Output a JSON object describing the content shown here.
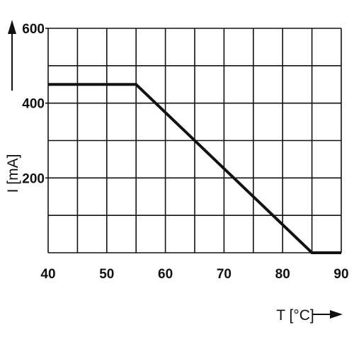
{
  "chart_data": {
    "type": "line",
    "xlabel": "T [°C]",
    "ylabel": "I [mA]",
    "xlim": [
      40,
      90
    ],
    "ylim": [
      0,
      600
    ],
    "x_ticks": [
      "40",
      "50",
      "60",
      "70",
      "80",
      "90"
    ],
    "y_ticks": [
      "200",
      "400",
      "600"
    ],
    "grid": true,
    "x_grid_step": 5,
    "y_grid_step": 100,
    "series": [
      {
        "x": [
          40,
          55,
          85,
          90
        ],
        "y": [
          450,
          450,
          0,
          0
        ],
        "color": "#111111"
      }
    ]
  }
}
